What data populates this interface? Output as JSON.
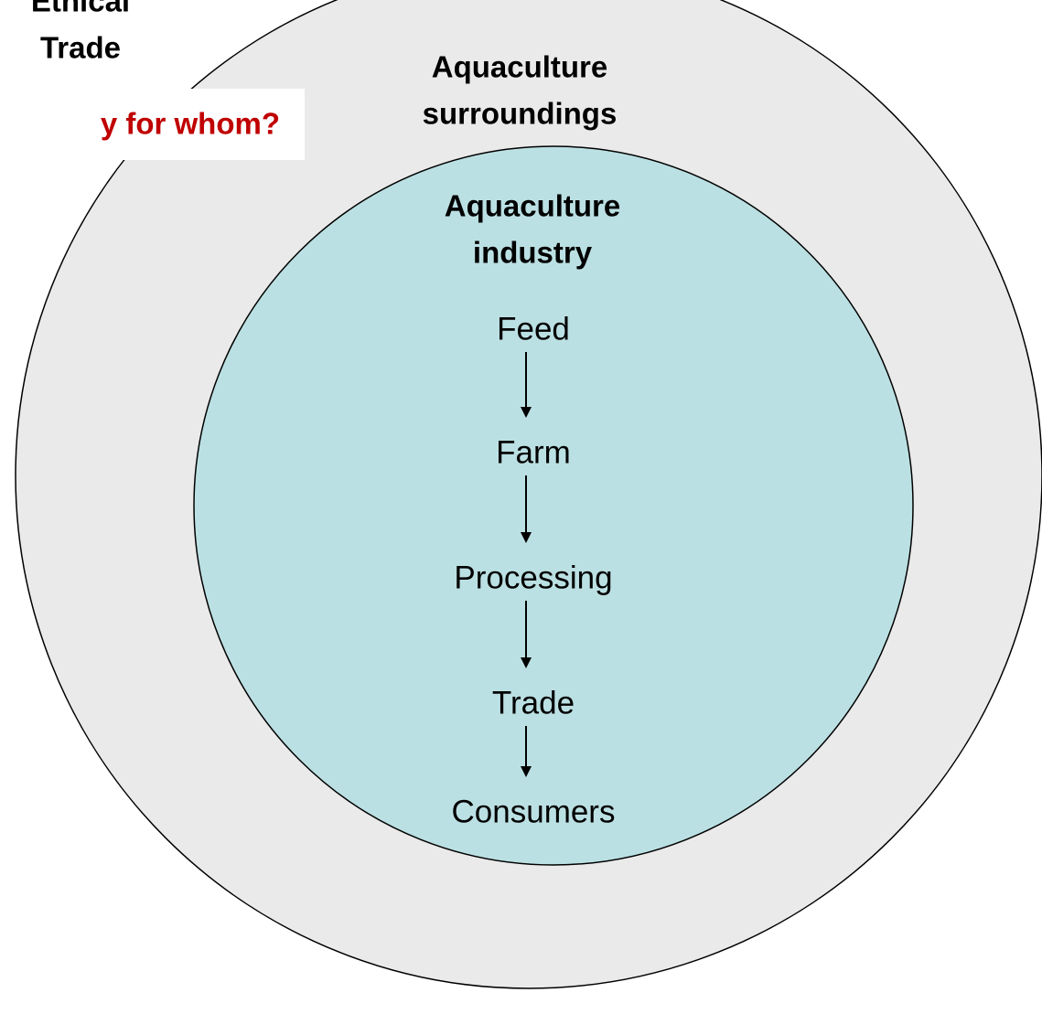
{
  "header": {
    "title_lines": [
      "Ethical",
      "Trade"
    ],
    "question": "y for whom?"
  },
  "outer": {
    "label_lines": [
      "Aquaculture",
      "surroundings"
    ]
  },
  "inner": {
    "label_lines": [
      "Aquaculture",
      "industry"
    ]
  },
  "chain": [
    "Feed",
    "Farm",
    "Processing",
    "Trade",
    "Consumers"
  ]
}
